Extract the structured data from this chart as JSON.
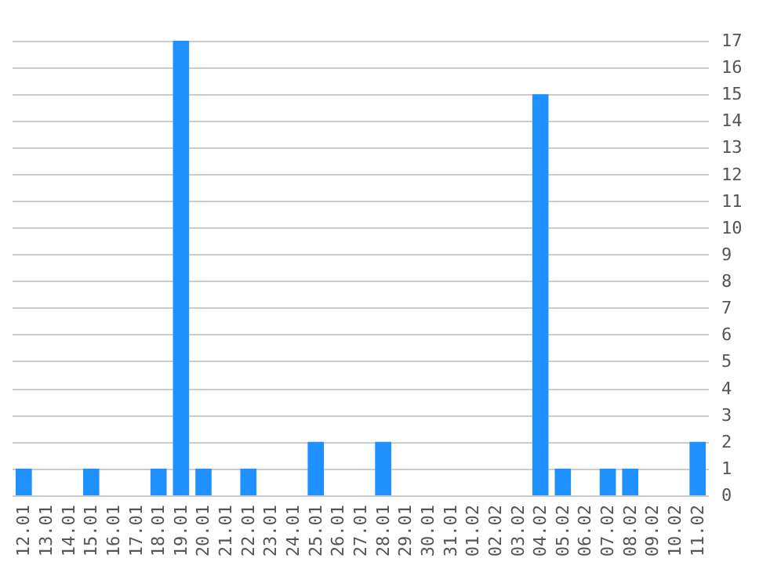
{
  "chart_data": {
    "type": "bar",
    "categories": [
      "12.01",
      "13.01",
      "14.01",
      "15.01",
      "16.01",
      "17.01",
      "18.01",
      "19.01",
      "20.01",
      "21.01",
      "22.01",
      "23.01",
      "24.01",
      "25.01",
      "26.01",
      "27.01",
      "28.01",
      "29.01",
      "30.01",
      "31.01",
      "01.02",
      "02.02",
      "03.02",
      "04.02",
      "05.02",
      "06.02",
      "07.02",
      "08.02",
      "09.02",
      "10.02",
      "11.02"
    ],
    "values": [
      1,
      0,
      0,
      1,
      0,
      0,
      1,
      17,
      1,
      0,
      1,
      0,
      0,
      2,
      0,
      0,
      2,
      0,
      0,
      0,
      0,
      0,
      0,
      15,
      1,
      0,
      1,
      1,
      0,
      0,
      2
    ],
    "color": "#1e90ff",
    "ylim": [
      0,
      17
    ],
    "yticks": [
      0,
      1,
      2,
      3,
      4,
      5,
      6,
      7,
      8,
      9,
      10,
      11,
      12,
      13,
      14,
      15,
      16,
      17
    ],
    "grid": "y"
  }
}
